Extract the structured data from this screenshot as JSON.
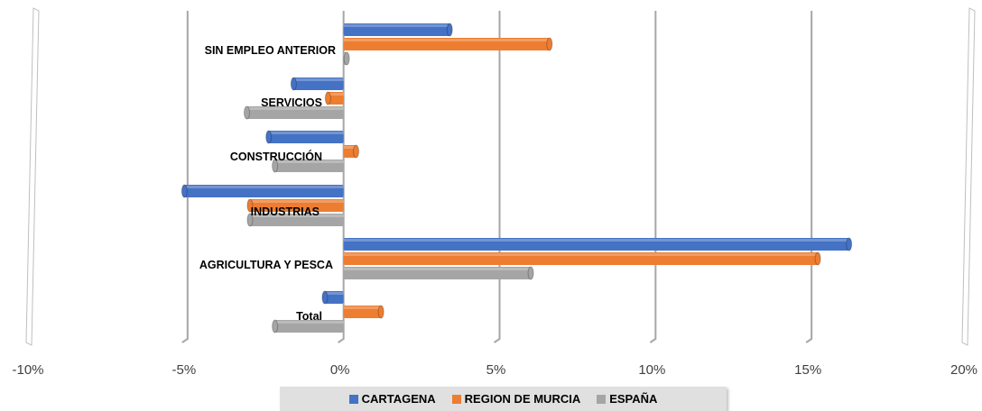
{
  "chart_data": {
    "type": "bar",
    "orientation": "horizontal",
    "categories": [
      "SIN EMPLEO ANTERIOR",
      "SERVICIOS",
      "CONSTRUCCIÓN",
      "INDUSTRIAS",
      "AGRICULTURA Y PESCA",
      "Total"
    ],
    "series": [
      {
        "name": "CARTAGENA",
        "color": "#4472c4",
        "values": [
          3.4,
          -1.6,
          -2.4,
          -5.1,
          16.2,
          -0.6
        ]
      },
      {
        "name": "REGION DE MURCIA",
        "color": "#ed7d31",
        "values": [
          6.6,
          -0.5,
          0.4,
          -3.0,
          15.2,
          1.2
        ]
      },
      {
        "name": "ESPAÑA",
        "color": "#a5a5a5",
        "values": [
          0.1,
          -3.1,
          -2.2,
          -3.0,
          6.0,
          -2.2
        ]
      }
    ],
    "xlim": [
      -10,
      20
    ],
    "xticks": [
      "-10%",
      "-5%",
      "0%",
      "5%",
      "10%",
      "15%",
      "20%"
    ],
    "grid": true,
    "legend_position": "bottom"
  }
}
